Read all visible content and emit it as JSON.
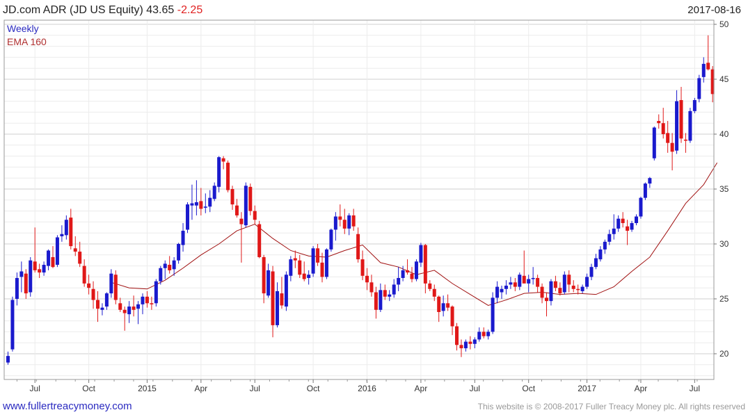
{
  "header": {
    "title": "JD.com ADR (JD US Equity) 43.65",
    "change": "-2.25",
    "date": "2017-08-16"
  },
  "legend": {
    "period": "Weekly",
    "ema": "EMA 160"
  },
  "footer": {
    "left": "www.fullertreacymoney.com",
    "right": "This website is © 2008-2017 Fuller Treacy Money plc. All rights reserved"
  },
  "colors": {
    "up": "#1a1acd",
    "down": "#e01818",
    "ema": "#a01010",
    "grid": "#e0e0e0"
  },
  "chart_data": {
    "type": "candlestick",
    "title": "JD.com ADR (JD US Equity) 43.65 -2.25",
    "frequency": "Weekly",
    "ylim": [
      18,
      51
    ],
    "yticks": [
      20,
      25,
      30,
      35,
      40,
      45,
      50
    ],
    "xtick_labels": [
      "Jul",
      "Oct",
      "2015",
      "Apr",
      "Jul",
      "Oct",
      "2016",
      "Apr",
      "Jul",
      "Oct",
      "2017",
      "Apr",
      "Jul"
    ],
    "xtick_weeks": [
      6,
      18,
      31,
      43,
      55,
      68,
      80,
      92,
      104,
      116,
      129,
      141,
      153
    ],
    "candles_ohlc": [
      [
        19.2,
        20.2,
        19.0,
        19.8
      ],
      [
        20.4,
        25.2,
        20.2,
        24.9
      ],
      [
        25.0,
        27.4,
        24.4,
        26.9
      ],
      [
        27.0,
        28.4,
        25.6,
        27.5
      ],
      [
        27.3,
        27.7,
        25.0,
        25.5
      ],
      [
        25.6,
        28.8,
        25.2,
        28.5
      ],
      [
        28.4,
        31.5,
        27.4,
        27.6
      ],
      [
        27.7,
        28.2,
        26.9,
        27.4
      ],
      [
        27.4,
        28.4,
        27.1,
        28.1
      ],
      [
        28.0,
        29.5,
        27.6,
        29.4
      ],
      [
        28.8,
        29.8,
        27.8,
        27.9
      ],
      [
        28.1,
        30.8,
        27.9,
        30.6
      ],
      [
        30.7,
        31.7,
        30.2,
        30.9
      ],
      [
        30.8,
        32.6,
        30.4,
        32.2
      ],
      [
        32.4,
        33.2,
        29.5,
        29.8
      ],
      [
        29.6,
        30.7,
        28.9,
        29.3
      ],
      [
        29.3,
        30.2,
        27.9,
        28.2
      ],
      [
        28.0,
        28.6,
        26.1,
        26.4
      ],
      [
        26.4,
        27.2,
        25.4,
        26.0
      ],
      [
        25.9,
        26.6,
        24.1,
        24.9
      ],
      [
        24.9,
        25.7,
        22.9,
        24.1
      ],
      [
        24.0,
        24.6,
        23.5,
        24.2
      ],
      [
        24.3,
        25.6,
        24.0,
        25.5
      ],
      [
        25.5,
        27.7,
        25.1,
        27.3
      ],
      [
        27.2,
        27.6,
        24.5,
        24.9
      ],
      [
        24.6,
        25.1,
        23.8,
        24.0
      ],
      [
        24.0,
        24.3,
        22.1,
        23.7
      ],
      [
        23.6,
        24.8,
        22.8,
        24.3
      ],
      [
        24.3,
        25.3,
        23.4,
        24.0
      ],
      [
        24.1,
        24.8,
        22.7,
        24.5
      ],
      [
        24.5,
        25.5,
        23.6,
        25.2
      ],
      [
        25.2,
        25.7,
        24.2,
        24.6
      ],
      [
        24.6,
        25.2,
        24.0,
        24.5
      ],
      [
        24.6,
        26.8,
        24.3,
        26.6
      ],
      [
        26.6,
        28.0,
        26.3,
        27.8
      ],
      [
        27.8,
        28.5,
        26.8,
        28.2
      ],
      [
        28.1,
        28.9,
        27.3,
        27.6
      ],
      [
        27.7,
        28.8,
        27.1,
        28.5
      ],
      [
        28.5,
        30.1,
        28.2,
        30.0
      ],
      [
        29.9,
        31.9,
        29.3,
        31.2
      ],
      [
        31.3,
        33.8,
        31.0,
        33.6
      ],
      [
        33.5,
        35.4,
        32.2,
        33.7
      ],
      [
        33.5,
        35.8,
        32.6,
        33.8
      ],
      [
        33.9,
        35.1,
        32.6,
        33.2
      ],
      [
        33.3,
        34.6,
        32.8,
        33.4
      ],
      [
        33.4,
        34.9,
        32.9,
        34.2
      ],
      [
        34.1,
        35.6,
        33.9,
        35.3
      ],
      [
        35.2,
        38.0,
        34.7,
        37.9
      ],
      [
        37.8,
        38.0,
        36.8,
        37.5
      ],
      [
        37.4,
        37.6,
        34.7,
        34.9
      ],
      [
        35.0,
        35.3,
        33.1,
        33.6
      ],
      [
        33.5,
        34.1,
        32.4,
        32.6
      ],
      [
        32.3,
        32.9,
        28.3,
        31.8
      ],
      [
        31.7,
        35.6,
        31.5,
        35.3
      ],
      [
        35.2,
        35.5,
        32.6,
        33.0
      ],
      [
        33.0,
        33.5,
        31.8,
        32.2
      ],
      [
        31.8,
        32.1,
        28.7,
        28.8
      ],
      [
        28.8,
        29.0,
        24.6,
        25.5
      ],
      [
        25.3,
        28.2,
        25.1,
        27.6
      ],
      [
        27.5,
        28.0,
        21.5,
        22.6
      ],
      [
        22.6,
        26.5,
        22.4,
        25.7
      ],
      [
        25.5,
        27.0,
        24.1,
        24.4
      ],
      [
        24.3,
        27.5,
        23.9,
        27.2
      ],
      [
        27.1,
        28.9,
        26.6,
        28.6
      ],
      [
        28.7,
        29.4,
        27.8,
        28.5
      ],
      [
        28.5,
        29.0,
        26.9,
        27.2
      ],
      [
        27.3,
        28.4,
        26.6,
        26.8
      ],
      [
        26.9,
        27.6,
        26.3,
        27.2
      ],
      [
        27.3,
        29.8,
        27.0,
        29.6
      ],
      [
        29.6,
        30.0,
        28.0,
        28.3
      ],
      [
        28.3,
        29.2,
        26.5,
        27.0
      ],
      [
        27.0,
        29.6,
        26.8,
        29.5
      ],
      [
        29.5,
        31.4,
        29.3,
        31.3
      ],
      [
        31.3,
        32.9,
        30.3,
        32.5
      ],
      [
        32.5,
        33.6,
        31.6,
        32.2
      ],
      [
        32.2,
        33.2,
        30.9,
        31.4
      ],
      [
        31.4,
        32.8,
        30.8,
        32.6
      ],
      [
        32.6,
        33.2,
        31.2,
        31.6
      ],
      [
        30.9,
        31.5,
        28.3,
        28.6
      ],
      [
        28.6,
        29.4,
        26.7,
        27.1
      ],
      [
        27.1,
        27.8,
        25.8,
        26.5
      ],
      [
        26.5,
        27.2,
        25.2,
        25.6
      ],
      [
        25.6,
        26.1,
        23.2,
        24.0
      ],
      [
        24.0,
        26.4,
        23.8,
        25.8
      ],
      [
        25.8,
        26.3,
        24.9,
        25.2
      ],
      [
        25.2,
        25.8,
        24.8,
        25.4
      ],
      [
        25.4,
        26.8,
        25.1,
        26.3
      ],
      [
        26.3,
        27.9,
        25.7,
        26.9
      ],
      [
        26.9,
        28.0,
        26.6,
        27.6
      ],
      [
        27.6,
        28.6,
        27.2,
        27.4
      ],
      [
        27.3,
        27.9,
        26.5,
        26.8
      ],
      [
        26.8,
        28.6,
        26.6,
        28.4
      ],
      [
        28.3,
        30.1,
        27.9,
        29.9
      ],
      [
        29.9,
        30.0,
        25.5,
        26.4
      ],
      [
        26.4,
        26.7,
        25.7,
        25.9
      ],
      [
        25.9,
        26.3,
        24.8,
        25.2
      ],
      [
        25.2,
        25.3,
        22.9,
        23.8
      ],
      [
        23.9,
        25.3,
        23.4,
        24.6
      ],
      [
        24.6,
        25.4,
        23.9,
        24.2
      ],
      [
        24.3,
        24.4,
        21.7,
        22.5
      ],
      [
        22.5,
        22.8,
        20.3,
        20.8
      ],
      [
        20.8,
        21.3,
        19.7,
        20.5
      ],
      [
        20.5,
        21.3,
        20.2,
        21.1
      ],
      [
        21.1,
        21.6,
        20.4,
        20.9
      ],
      [
        20.9,
        21.5,
        20.5,
        21.3
      ],
      [
        21.3,
        22.4,
        21.1,
        22.0
      ],
      [
        22.0,
        22.4,
        21.4,
        21.6
      ],
      [
        21.6,
        22.2,
        21.3,
        22.0
      ],
      [
        22.0,
        25.6,
        21.8,
        25.1
      ],
      [
        25.1,
        26.6,
        24.6,
        26.1
      ],
      [
        25.6,
        26.2,
        25.0,
        25.9
      ],
      [
        25.9,
        26.7,
        25.4,
        26.2
      ],
      [
        26.3,
        27.0,
        25.9,
        26.5
      ],
      [
        26.5,
        26.9,
        25.7,
        26.1
      ],
      [
        26.1,
        27.4,
        25.8,
        27.2
      ],
      [
        27.1,
        29.4,
        26.7,
        26.4
      ],
      [
        26.4,
        27.2,
        25.6,
        26.8
      ],
      [
        26.8,
        27.9,
        26.3,
        26.9
      ],
      [
        26.9,
        27.2,
        25.6,
        26.1
      ],
      [
        26.1,
        26.4,
        24.6,
        25.1
      ],
      [
        25.1,
        25.6,
        23.4,
        24.8
      ],
      [
        24.8,
        26.8,
        24.4,
        26.6
      ],
      [
        26.6,
        27.1,
        25.7,
        26.0
      ],
      [
        26.0,
        26.5,
        25.3,
        25.5
      ],
      [
        25.6,
        27.5,
        25.4,
        27.2
      ],
      [
        27.2,
        27.6,
        25.6,
        26.3
      ],
      [
        26.2,
        26.7,
        25.6,
        25.9
      ],
      [
        25.9,
        26.3,
        25.4,
        25.8
      ],
      [
        25.7,
        26.3,
        25.5,
        26.1
      ],
      [
        26.1,
        27.3,
        25.9,
        27.0
      ],
      [
        27.0,
        28.2,
        26.7,
        27.9
      ],
      [
        27.9,
        29.1,
        27.7,
        28.7
      ],
      [
        28.6,
        29.8,
        28.4,
        29.5
      ],
      [
        29.5,
        30.4,
        29.1,
        30.2
      ],
      [
        30.2,
        31.3,
        29.9,
        30.9
      ],
      [
        30.9,
        32.7,
        30.4,
        31.4
      ],
      [
        31.4,
        32.6,
        31.1,
        32.3
      ],
      [
        32.3,
        32.9,
        31.5,
        31.9
      ],
      [
        31.6,
        32.2,
        29.9,
        31.2
      ],
      [
        31.3,
        32.1,
        31.1,
        31.9
      ],
      [
        31.9,
        32.7,
        31.7,
        32.5
      ],
      [
        32.5,
        34.3,
        32.3,
        34.2
      ],
      [
        34.2,
        35.6,
        34.0,
        35.5
      ],
      [
        35.5,
        36.1,
        35.1,
        36.0
      ],
      [
        37.8,
        40.7,
        37.6,
        40.6
      ],
      [
        41.2,
        41.8,
        40.5,
        41.0
      ],
      [
        41.0,
        42.4,
        39.6,
        40.0
      ],
      [
        40.1,
        41.2,
        38.3,
        39.2
      ],
      [
        39.2,
        40.1,
        36.7,
        38.4
      ],
      [
        38.5,
        44.0,
        38.2,
        43.0
      ],
      [
        43.1,
        44.3,
        39.2,
        39.6
      ],
      [
        39.5,
        40.1,
        38.3,
        39.4
      ],
      [
        39.4,
        42.4,
        39.2,
        42.1
      ],
      [
        42.1,
        43.3,
        41.9,
        43.1
      ],
      [
        43.2,
        45.4,
        42.9,
        45.1
      ],
      [
        45.2,
        47.0,
        44.7,
        46.4
      ],
      [
        46.5,
        49.0,
        45.8,
        45.9
      ],
      [
        45.9,
        46.2,
        42.9,
        43.65
      ]
    ],
    "ema_160": {
      "name": "EMA 160",
      "x_weeks": [
        23,
        27,
        31,
        35,
        39,
        43,
        47,
        51,
        55,
        59,
        63,
        67,
        71,
        75,
        79,
        83,
        87,
        91,
        95,
        99,
        103,
        107,
        111,
        115,
        119,
        123,
        127,
        131,
        135,
        139,
        143,
        147,
        151,
        155,
        158
      ],
      "values": [
        26.5,
        26.0,
        25.9,
        26.7,
        27.8,
        29.0,
        30.0,
        31.2,
        31.8,
        30.5,
        29.4,
        28.9,
        28.8,
        29.4,
        29.9,
        28.3,
        27.9,
        27.2,
        27.6,
        26.4,
        25.4,
        24.4,
        24.9,
        25.5,
        25.6,
        25.4,
        25.5,
        25.4,
        26.1,
        27.5,
        28.8,
        31.2,
        33.7,
        35.4,
        37.4
      ]
    }
  }
}
